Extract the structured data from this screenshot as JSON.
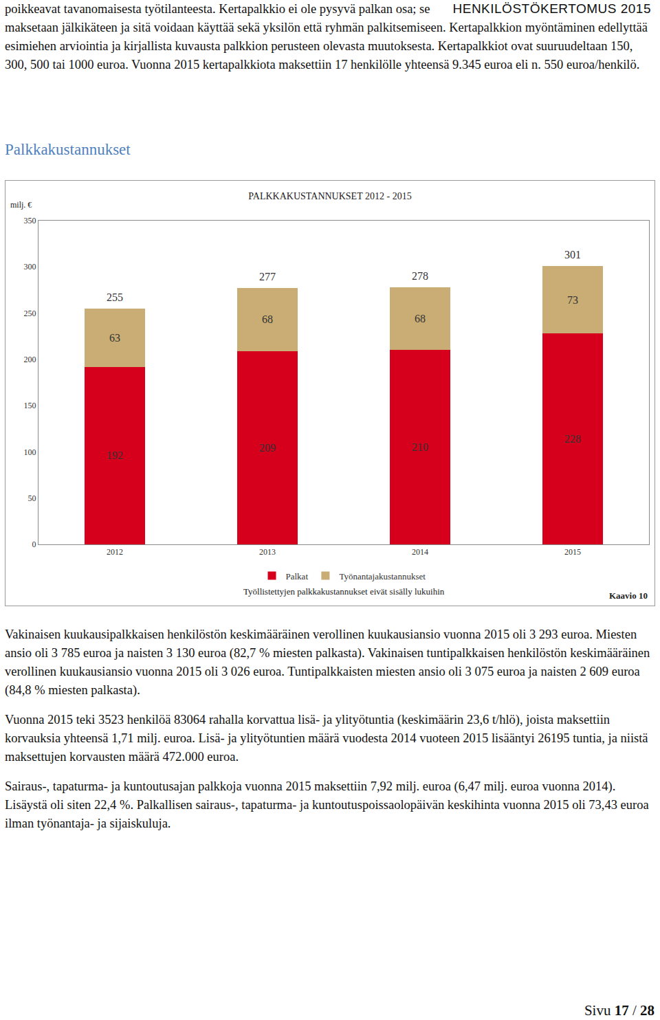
{
  "header": "HENKILÖSTÖKERTOMUS 2015",
  "paragraphs_before": [
    "poikkeavat tavanomaisesta työtilanteesta. Kertapalkkio ei ole pysyvä palkan osa; se maksetaan jälkikäteen ja sitä voidaan käyttää sekä yksilön että ryhmän palkitsemiseen. Kertapalkkion myöntäminen edellyttää esimiehen arviointia ja kirjallista kuvausta palkkion perusteen olevasta muutoksesta. Kertapalkkiot ovat suuruudeltaan 150, 300, 500 tai 1000 euroa. Vuonna 2015 kertapalkkiota maksettiin 17 henkilölle yhteensä 9.345 euroa eli n. 550 euroa/henkilö."
  ],
  "section_title": "Palkkakustannukset",
  "chart_data": {
    "type": "bar",
    "title": "PALKKAKUSTANNUKSET 2012 - 2015",
    "y_label": "milj. €",
    "categories": [
      "2012",
      "2013",
      "2014",
      "2015"
    ],
    "series": [
      {
        "name": "Palkat",
        "color": "#d6001c",
        "values": [
          192,
          209,
          210,
          228
        ]
      },
      {
        "name": "Työnantajakustannukset",
        "color": "#c9ad74",
        "values": [
          63,
          68,
          68,
          73
        ]
      }
    ],
    "totals": [
      255,
      277,
      278,
      301
    ],
    "stacked": true,
    "data_labels": true,
    "grid": false,
    "legend": "bottom",
    "ylim": [
      0,
      350
    ],
    "yticks": [
      0,
      50,
      100,
      150,
      200,
      250,
      300,
      350
    ],
    "note": "Työllistettyjen palkkakustannukset eivät sisälly lukuihin",
    "figure_label": "Kaavio 10"
  },
  "paragraphs_after": [
    "Vakinaisen kuukausipalkkaisen henkilöstön keskimääräinen verollinen kuukausiansio vuonna 2015 oli 3 293 euroa. Miesten ansio oli 3 785 euroa ja naisten 3 130 euroa (82,7 % miesten palkasta). Vakinaisen tuntipalkkaisen henkilöstön keskimääräinen verollinen kuukausiansio vuonna 2015 oli 3 026 euroa. Tuntipalkkaisten miesten ansio oli 3 075 euroa ja naisten 2 609 euroa (84,8 % miesten palkasta).",
    "Vuonna 2015 teki 3523 henkilöä 83064 rahalla korvattua lisä- ja ylityötuntia (keskimäärin 23,6 t/hlö), joista maksettiin korvauksia yhteensä 1,71 milj. euroa. Lisä- ja ylityötuntien määrä vuodesta 2014 vuoteen 2015 lisääntyi 26195 tuntia, ja niistä maksettujen korvausten määrä 472.000 euroa.",
    "Sairaus-, tapaturma- ja kuntoutusajan palkkoja vuonna 2015 maksettiin 7,92 milj. euroa (6,47 milj. euroa vuonna 2014). Lisäystä oli siten 22,4 %. Palkallisen sairaus-, tapaturma- ja kuntoutuspoissaolopäivän keskihinta vuonna 2015 oli 73,43 euroa ilman työnantaja- ja sijaiskuluja."
  ],
  "footer": {
    "label": "Sivu",
    "page": 17,
    "separator": "/",
    "total": 28
  }
}
